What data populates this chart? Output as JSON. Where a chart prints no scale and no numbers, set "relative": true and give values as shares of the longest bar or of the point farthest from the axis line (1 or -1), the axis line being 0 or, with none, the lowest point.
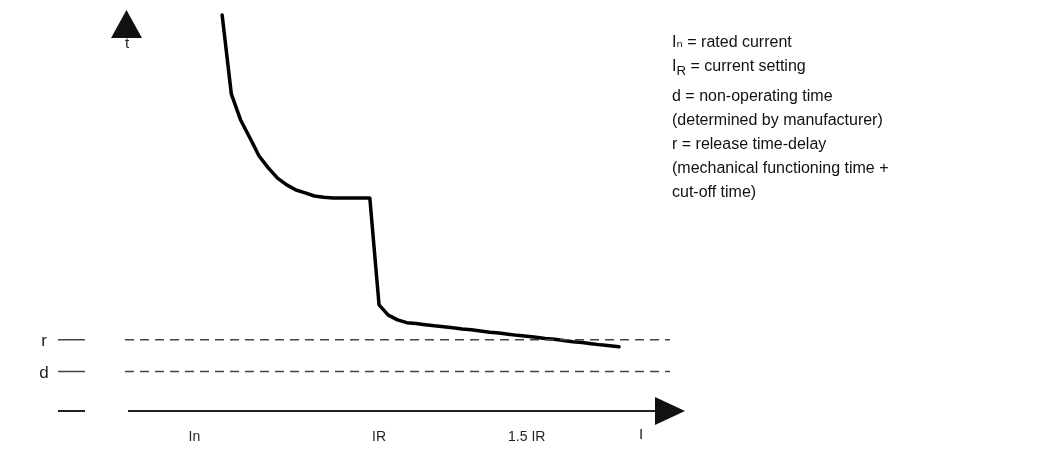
{
  "chart_data": {
    "type": "line",
    "relative": true,
    "xlabel": "I",
    "ylabel": "t",
    "categories": [
      null,
      null,
      null,
      null,
      null,
      null,
      null,
      null,
      "In",
      null,
      null,
      null,
      null,
      null,
      null,
      null,
      null,
      null,
      null,
      null,
      null,
      null,
      null,
      null,
      null,
      null,
      null,
      null,
      "IR",
      null,
      null,
      null,
      null,
      null,
      null,
      null,
      null,
      null,
      null,
      null,
      null,
      null,
      null,
      null,
      "1.5 IR",
      null,
      null,
      null,
      null,
      null,
      null,
      null,
      null,
      null,
      null,
      null,
      null,
      null,
      null,
      null,
      null
    ],
    "series": [
      {
        "color": "#000000",
        "values": [
          null,
          null,
          null,
          null,
          null,
          null,
          null,
          null,
          null,
          null,
          null,
          1,
          0.8,
          0.735,
          0.69,
          0.644,
          0.614,
          0.588,
          0.571,
          0.558,
          0.551,
          0.543,
          0.54,
          0.538,
          0.538,
          0.538,
          0.538,
          0.538,
          0.268,
          0.242,
          0.23,
          0.223,
          0.221,
          0.218,
          0.215,
          0.213,
          0.21,
          0.207,
          0.205,
          0.202,
          0.199,
          0.197,
          0.194,
          0.191,
          0.189,
          0.186,
          0.183,
          0.181,
          0.178,
          0.175,
          0.173,
          0.17,
          0.167,
          0.165,
          0.162,
          null,
          null,
          null,
          null,
          null,
          null
        ]
      }
    ],
    "ref_lines": [
      {
        "axis": "y",
        "value": 0.18,
        "label": "r",
        "color": "#444444",
        "line_style": "dashed"
      },
      {
        "axis": "y",
        "value": 0.1,
        "label": "d",
        "color": "#444444",
        "line_style": "dashed"
      }
    ],
    "annotations": [
      "Iₙ = rated current",
      "I$_{R}$ = current setting",
      "d = non-operating time",
      "(determined by manufacturer)",
      "r = release time-delay",
      "(mechanical functioning time +",
      "cut-off time)"
    ]
  }
}
